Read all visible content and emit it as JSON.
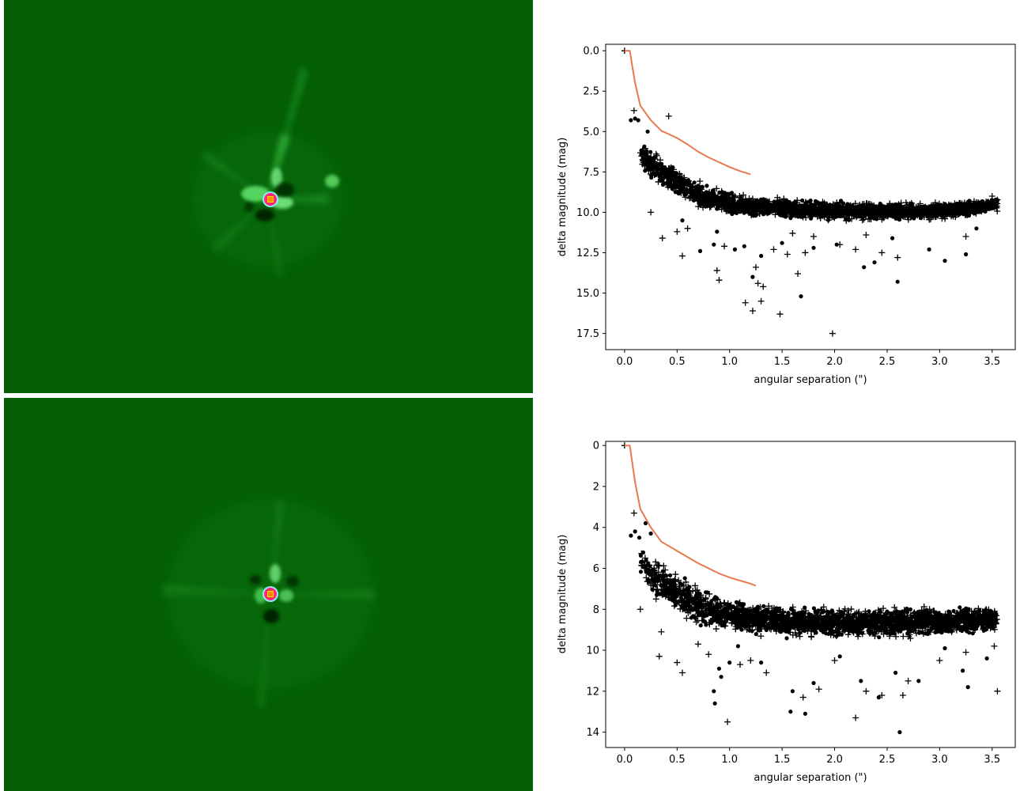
{
  "colors": {
    "image_background": "#045e04",
    "curve": "#e8784e",
    "marker": "#000000",
    "star_core": "#ff2a6a",
    "star_center": "#ffd800"
  },
  "images": [
    {
      "name": "residual-image-top"
    },
    {
      "name": "residual-image-bottom"
    }
  ],
  "chart_data": [
    {
      "type": "scatter",
      "xlabel": "angular separation (\")",
      "ylabel": "delta magnitude (mag)",
      "xlim": [
        -0.18,
        3.72
      ],
      "ylim": [
        18.5,
        -0.4
      ],
      "y_inverted": true,
      "xticks": [
        0.0,
        0.5,
        1.0,
        1.5,
        2.0,
        2.5,
        3.0,
        3.5
      ],
      "xtick_labels": [
        "0.0",
        "0.5",
        "1.0",
        "1.5",
        "2.0",
        "2.5",
        "3.0",
        "3.5"
      ],
      "yticks": [
        0.0,
        2.5,
        5.0,
        7.5,
        10.0,
        12.5,
        15.0,
        17.5
      ],
      "ytick_labels": [
        "0.0",
        "2.5",
        "5.0",
        "7.5",
        "10.0",
        "12.5",
        "15.0",
        "17.5"
      ],
      "grid": false,
      "curve": {
        "x": [
          0.0,
          0.05,
          0.1,
          0.15,
          0.25,
          0.35,
          0.5,
          0.6,
          0.7,
          0.8,
          0.9,
          1.0,
          1.1,
          1.2
        ],
        "y": [
          0.0,
          0.0,
          2.0,
          3.4,
          4.3,
          4.95,
          5.4,
          5.8,
          6.25,
          6.6,
          6.9,
          7.2,
          7.45,
          7.65
        ]
      },
      "band": {
        "x": [
          0.15,
          0.3,
          0.5,
          0.7,
          0.9,
          1.2,
          1.6,
          2.0,
          2.5,
          3.0,
          3.3,
          3.55
        ],
        "lo": [
          5.4,
          6.2,
          7.1,
          7.9,
          8.5,
          8.9,
          9.1,
          9.2,
          9.3,
          9.3,
          9.2,
          9.0
        ],
        "hi": [
          7.4,
          8.4,
          9.2,
          9.8,
          10.2,
          10.4,
          10.5,
          10.6,
          10.6,
          10.5,
          10.3,
          10.0
        ]
      },
      "plus_points": [
        [
          0.0,
          0.0
        ],
        [
          0.09,
          3.7
        ],
        [
          0.42,
          4.05
        ],
        [
          0.25,
          10.0
        ],
        [
          0.36,
          11.6
        ],
        [
          0.5,
          11.2
        ],
        [
          0.55,
          12.7
        ],
        [
          0.6,
          11.0
        ],
        [
          0.88,
          13.6
        ],
        [
          0.9,
          14.2
        ],
        [
          0.95,
          12.1
        ],
        [
          1.15,
          15.6
        ],
        [
          1.22,
          16.1
        ],
        [
          1.25,
          13.4
        ],
        [
          1.27,
          14.4
        ],
        [
          1.3,
          15.5
        ],
        [
          1.32,
          14.6
        ],
        [
          1.42,
          12.3
        ],
        [
          1.48,
          16.3
        ],
        [
          1.55,
          12.6
        ],
        [
          1.6,
          11.3
        ],
        [
          1.65,
          13.8
        ],
        [
          1.72,
          12.5
        ],
        [
          1.8,
          11.5
        ],
        [
          1.98,
          17.5
        ],
        [
          2.05,
          12.0
        ],
        [
          2.2,
          12.3
        ],
        [
          2.3,
          11.4
        ],
        [
          2.45,
          12.5
        ],
        [
          2.6,
          12.8
        ],
        [
          3.25,
          11.5
        ],
        [
          3.5,
          9.0
        ]
      ],
      "dot_points": [
        [
          0.06,
          4.3
        ],
        [
          0.1,
          4.2
        ],
        [
          0.13,
          4.3
        ],
        [
          0.22,
          5.0
        ],
        [
          0.42,
          8.4
        ],
        [
          0.55,
          10.5
        ],
        [
          0.72,
          12.4
        ],
        [
          0.85,
          12.0
        ],
        [
          0.88,
          11.2
        ],
        [
          1.05,
          12.3
        ],
        [
          1.14,
          12.1
        ],
        [
          1.22,
          14.0
        ],
        [
          1.3,
          12.7
        ],
        [
          1.5,
          11.9
        ],
        [
          1.68,
          15.2
        ],
        [
          1.8,
          12.2
        ],
        [
          2.02,
          12.0
        ],
        [
          2.28,
          13.4
        ],
        [
          2.38,
          13.1
        ],
        [
          2.55,
          11.6
        ],
        [
          2.6,
          14.3
        ],
        [
          2.9,
          12.3
        ],
        [
          3.05,
          13.0
        ],
        [
          3.25,
          12.6
        ],
        [
          3.35,
          11.0
        ]
      ]
    },
    {
      "type": "scatter",
      "xlabel": "angular separation (\")",
      "ylabel": "delta magnitude (mag)",
      "xlim": [
        -0.18,
        3.72
      ],
      "ylim": [
        14.75,
        -0.2
      ],
      "y_inverted": true,
      "xticks": [
        0.0,
        0.5,
        1.0,
        1.5,
        2.0,
        2.5,
        3.0,
        3.5
      ],
      "xtick_labels": [
        "0.0",
        "0.5",
        "1.0",
        "1.5",
        "2.0",
        "2.5",
        "3.0",
        "3.5"
      ],
      "yticks": [
        0,
        2,
        4,
        6,
        8,
        10,
        12,
        14
      ],
      "ytick_labels": [
        "0",
        "2",
        "4",
        "6",
        "8",
        "10",
        "12",
        "14"
      ],
      "grid": false,
      "curve": {
        "x": [
          0.0,
          0.05,
          0.1,
          0.15,
          0.25,
          0.35,
          0.5,
          0.6,
          0.7,
          0.8,
          0.9,
          1.0,
          1.1,
          1.2,
          1.25
        ],
        "y": [
          0.0,
          0.0,
          1.8,
          3.1,
          4.0,
          4.7,
          5.15,
          5.45,
          5.75,
          6.0,
          6.25,
          6.45,
          6.6,
          6.75,
          6.85
        ]
      },
      "band": {
        "x": [
          0.15,
          0.3,
          0.5,
          0.7,
          0.9,
          1.2,
          1.6,
          2.0,
          2.5,
          3.0,
          3.3,
          3.55
        ],
        "lo": [
          4.8,
          5.4,
          6.2,
          6.8,
          7.2,
          7.5,
          7.7,
          7.8,
          7.8,
          7.8,
          7.8,
          7.9
        ],
        "hi": [
          6.6,
          7.5,
          8.3,
          8.9,
          9.2,
          9.4,
          9.5,
          9.5,
          9.5,
          9.4,
          9.3,
          9.2
        ]
      },
      "plus_points": [
        [
          0.0,
          0.0
        ],
        [
          0.09,
          3.3
        ],
        [
          0.15,
          8.0
        ],
        [
          0.3,
          7.5
        ],
        [
          0.33,
          10.3
        ],
        [
          0.35,
          9.1
        ],
        [
          0.5,
          10.6
        ],
        [
          0.55,
          11.1
        ],
        [
          0.7,
          9.7
        ],
        [
          0.8,
          10.2
        ],
        [
          0.98,
          13.5
        ],
        [
          1.1,
          10.7
        ],
        [
          1.2,
          10.5
        ],
        [
          1.35,
          11.1
        ],
        [
          1.7,
          12.3
        ],
        [
          1.85,
          11.9
        ],
        [
          2.0,
          10.5
        ],
        [
          2.2,
          13.3
        ],
        [
          2.3,
          12.0
        ],
        [
          2.45,
          12.2
        ],
        [
          2.65,
          12.2
        ],
        [
          2.7,
          11.5
        ],
        [
          3.0,
          10.5
        ],
        [
          3.25,
          10.1
        ],
        [
          3.52,
          9.8
        ],
        [
          3.55,
          12.0
        ]
      ],
      "dot_points": [
        [
          0.06,
          4.4
        ],
        [
          0.1,
          4.2
        ],
        [
          0.14,
          4.5
        ],
        [
          0.2,
          3.8
        ],
        [
          0.25,
          4.3
        ],
        [
          0.85,
          12.0
        ],
        [
          0.86,
          12.6
        ],
        [
          0.9,
          10.9
        ],
        [
          0.92,
          11.3
        ],
        [
          1.0,
          10.6
        ],
        [
          1.08,
          9.8
        ],
        [
          1.3,
          10.6
        ],
        [
          1.58,
          13.0
        ],
        [
          1.6,
          12.0
        ],
        [
          1.72,
          13.1
        ],
        [
          1.8,
          11.6
        ],
        [
          2.05,
          10.3
        ],
        [
          2.25,
          11.5
        ],
        [
          2.42,
          12.3
        ],
        [
          2.58,
          11.1
        ],
        [
          2.62,
          14.0
        ],
        [
          2.8,
          11.5
        ],
        [
          3.05,
          9.9
        ],
        [
          3.22,
          11.0
        ],
        [
          3.27,
          11.8
        ],
        [
          3.45,
          10.4
        ]
      ]
    }
  ]
}
